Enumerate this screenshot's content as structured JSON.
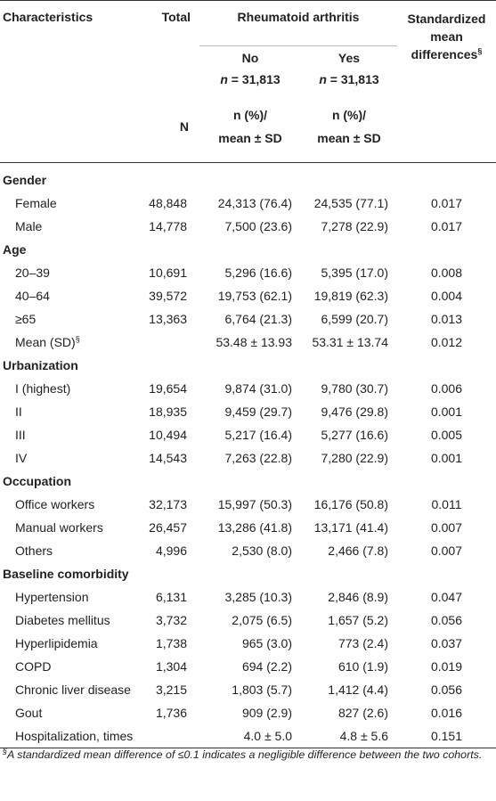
{
  "header": {
    "characteristics": "Characteristics",
    "total": "Total",
    "ra": "Rheumatoid arthritis",
    "smd_line1": "Standardized",
    "smd_line2": "mean",
    "smd_line3": "differences",
    "smd_mark": "§",
    "no": "No",
    "yes": "Yes",
    "n_prefix": "n",
    "n_no": " = 31,813",
    "n_yes": " = 31,813",
    "total_n": "N",
    "stat_line1": "n (%)/",
    "stat_line2": "mean ± SD"
  },
  "sections": [
    {
      "title": "Gender",
      "rows": [
        {
          "label": "Female",
          "total": "48,848",
          "no": "24,313 (76.4)",
          "yes": "24,535 (77.1)",
          "smd": "0.017"
        },
        {
          "label": "Male",
          "total": "14,778",
          "no": "7,500 (23.6)",
          "yes": "7,278 (22.9)",
          "smd": "0.017"
        }
      ]
    },
    {
      "title": "Age",
      "rows": [
        {
          "label": "20–39",
          "total": "10,691",
          "no": "5,296 (16.6)",
          "yes": "5,395 (17.0)",
          "smd": "0.008"
        },
        {
          "label": "40–64",
          "total": "39,572",
          "no": "19,753 (62.1)",
          "yes": "19,819 (62.3)",
          "smd": "0.004"
        },
        {
          "label": "≥65",
          "total": "13,363",
          "no": "6,764 (21.3)",
          "yes": "6,599 (20.7)",
          "smd": "0.013"
        },
        {
          "label": "Mean (SD)",
          "mark": "§",
          "total": "",
          "no": "53.48 ± 13.93",
          "yes": "53.31 ± 13.74",
          "smd": "0.012"
        }
      ]
    },
    {
      "title": "Urbanization",
      "rows": [
        {
          "label": "I (highest)",
          "total": "19,654",
          "no": "9,874 (31.0)",
          "yes": "9,780 (30.7)",
          "smd": "0.006"
        },
        {
          "label": "II",
          "total": "18,935",
          "no": "9,459 (29.7)",
          "yes": "9,476 (29.8)",
          "smd": "0.001"
        },
        {
          "label": "III",
          "total": "10,494",
          "no": "5,217 (16.4)",
          "yes": "5,277 (16.6)",
          "smd": "0.005"
        },
        {
          "label": "IV",
          "total": "14,543",
          "no": "7,263 (22.8)",
          "yes": "7,280 (22.9)",
          "smd": "0.001"
        }
      ]
    },
    {
      "title": "Occupation",
      "rows": [
        {
          "label": "Office workers",
          "total": "32,173",
          "no": "15,997 (50.3)",
          "yes": "16,176 (50.8)",
          "smd": "0.011"
        },
        {
          "label": "Manual workers",
          "total": "26,457",
          "no": "13,286 (41.8)",
          "yes": "13,171 (41.4)",
          "smd": "0.007"
        },
        {
          "label": "Others",
          "total": "4,996",
          "no": "2,530 (8.0)",
          "yes": "2,466 (7.8)",
          "smd": "0.007"
        }
      ]
    },
    {
      "title": "Baseline comorbidity",
      "rows": [
        {
          "label": "Hypertension",
          "total": "6,131",
          "no": "3,285 (10.3)",
          "yes": "2,846 (8.9)",
          "smd": "0.047"
        },
        {
          "label": "Diabetes mellitus",
          "total": "3,732",
          "no": "2,075 (6.5)",
          "yes": "1,657 (5.2)",
          "smd": "0.056"
        },
        {
          "label": "Hyperlipidemia",
          "total": "1,738",
          "no": "965 (3.0)",
          "yes": "773 (2.4)",
          "smd": "0.037"
        },
        {
          "label": "COPD",
          "total": "1,304",
          "no": "694 (2.2)",
          "yes": "610 (1.9)",
          "smd": "0.019"
        },
        {
          "label": "Chronic liver disease",
          "total": "3,215",
          "no": "1,803 (5.7)",
          "yes": "1,412 (4.4)",
          "smd": "0.056"
        },
        {
          "label": "Gout",
          "total": "1,736",
          "no": "909 (2.9)",
          "yes": "827 (2.6)",
          "smd": "0.016"
        },
        {
          "label": "Hospitalization, times",
          "total": "",
          "no": "4.0 ± 5.0",
          "yes": "4.8 ± 5.6",
          "smd": "0.151"
        }
      ]
    }
  ],
  "footnote": {
    "mark": "§",
    "text": "A standardized mean difference of ≤0.1 indicates a negligible difference between the two cohorts."
  }
}
